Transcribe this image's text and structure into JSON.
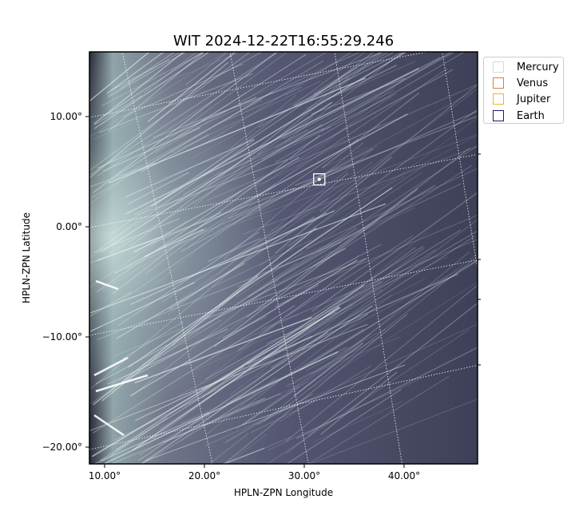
{
  "chart_data": {
    "type": "image",
    "title": "WIT 2024-12-22T16:55:29.246",
    "xlabel": "HPLN-ZPN Longitude",
    "ylabel": "HPLN-ZPN Latitude",
    "x_ticks": [
      {
        "value": 10,
        "label": "10.00°"
      },
      {
        "value": 20,
        "label": "20.00°"
      },
      {
        "value": 30,
        "label": "30.00°"
      },
      {
        "value": 40,
        "label": "40.00°"
      }
    ],
    "y_ticks": [
      {
        "value": 10,
        "label": "10.00°"
      },
      {
        "value": 0,
        "label": "0.00°"
      },
      {
        "value": -10,
        "label": "−10.00°"
      },
      {
        "value": -20,
        "label": "−20.00°"
      }
    ],
    "grid": true,
    "colormap": "bone",
    "legend_position": "outside-upper-right",
    "legend": [
      {
        "name": "Mercury",
        "color": "#d9d9d9"
      },
      {
        "name": "Venus",
        "color": "#e07b39"
      },
      {
        "name": "Jupiter",
        "color": "#e8b82b"
      },
      {
        "name": "Earth",
        "color": "#1a1a6e"
      }
    ],
    "markers": [
      {
        "name": "Mercury",
        "lon": 31.5,
        "lat": 4.3,
        "color": "#ffffff"
      }
    ]
  }
}
